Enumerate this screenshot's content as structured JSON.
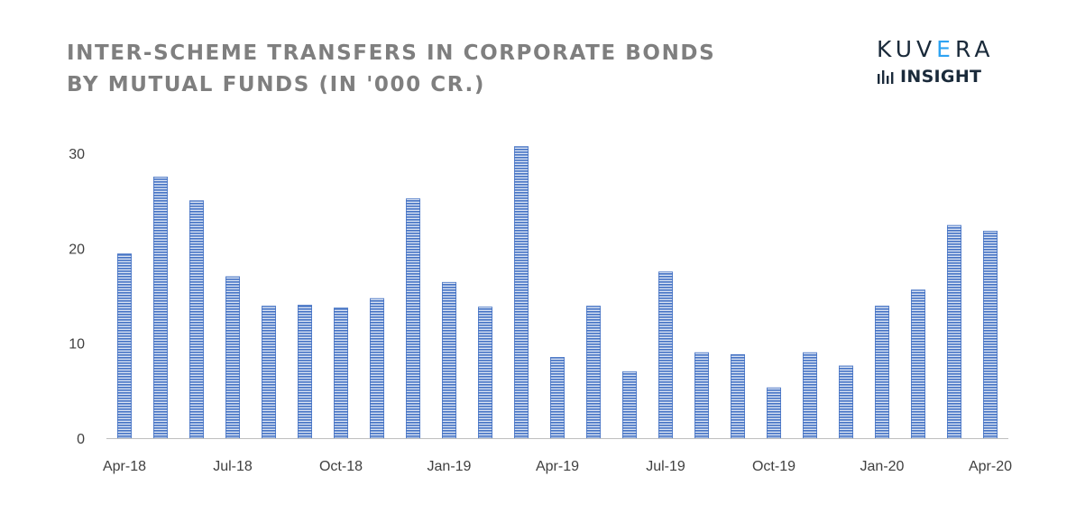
{
  "brand": {
    "name": "KUVERA",
    "sub": "INSIGHT",
    "accent": "#2ea3f2",
    "dark": "#1a2a3a",
    "icon": "bar-chart-icon"
  },
  "chart_data": {
    "type": "bar",
    "title_lines": [
      "INTER-SCHEME TRANSFERS IN CORPORATE BONDS",
      "BY MUTUAL FUNDS (IN '000 CR.)"
    ],
    "xlabel": "",
    "ylabel": "",
    "ylim": [
      0,
      30
    ],
    "yticks": [
      0,
      10,
      20,
      30
    ],
    "grid": false,
    "legend": "none",
    "bar_color": "#4472c4",
    "bar_pattern": "horizontal-lines",
    "categories": [
      "Apr-18",
      "May-18",
      "Jun-18",
      "Jul-18",
      "Aug-18",
      "Sep-18",
      "Oct-18",
      "Nov-18",
      "Dec-18",
      "Jan-19",
      "Feb-19",
      "Mar-19",
      "Apr-19",
      "May-19",
      "Jun-19",
      "Jul-19",
      "Aug-19",
      "Sep-19",
      "Oct-19",
      "Nov-19",
      "Dec-19",
      "Jan-20",
      "Feb-20",
      "Mar-20",
      "Apr-20"
    ],
    "tick_labels": [
      "Apr-18",
      "",
      "",
      "Jul-18",
      "",
      "",
      "Oct-18",
      "",
      "",
      "Jan-19",
      "",
      "",
      "Apr-19",
      "",
      "",
      "Jul-19",
      "",
      "",
      "Oct-19",
      "",
      "",
      "Jan-20",
      "",
      "",
      "Apr-20"
    ],
    "values": [
      19.4,
      27.5,
      25.0,
      17.0,
      13.9,
      14.0,
      13.7,
      14.7,
      25.2,
      16.4,
      13.8,
      30.7,
      8.5,
      13.9,
      7.0,
      17.5,
      9.0,
      8.8,
      5.3,
      9.0,
      7.6,
      13.9,
      15.6,
      22.4,
      21.8
    ]
  }
}
